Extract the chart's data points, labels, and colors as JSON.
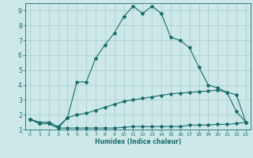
{
  "xlabel": "Humidex (Indice chaleur)",
  "bg_color": "#cce8e8",
  "grid_color": "#aacccc",
  "line_color": "#1a6b6b",
  "xlim": [
    -0.5,
    23.5
  ],
  "ylim": [
    1,
    9.5
  ],
  "yticks": [
    1,
    2,
    3,
    4,
    5,
    6,
    7,
    8,
    9
  ],
  "xtick_labels": [
    "0",
    "1",
    "2",
    "3",
    "4",
    "5",
    "6",
    "7",
    "8",
    "9",
    "10",
    "11",
    "12",
    "13",
    "14",
    "15",
    "16",
    "17",
    "18",
    "19",
    "20",
    "21",
    "22",
    "23"
  ],
  "series_top_x": [
    0,
    1,
    2,
    3,
    4,
    5,
    6,
    7,
    8,
    9,
    10,
    11,
    12,
    13,
    14,
    15,
    16,
    17,
    18,
    19,
    20,
    21,
    22,
    23
  ],
  "series_top_y": [
    1.7,
    1.4,
    1.4,
    1.1,
    1.8,
    4.2,
    4.2,
    5.8,
    6.7,
    7.5,
    8.6,
    9.3,
    8.8,
    9.3,
    8.8,
    7.2,
    7.0,
    6.5,
    5.2,
    4.0,
    3.8,
    3.5,
    2.2,
    1.5
  ],
  "series_mid_x": [
    0,
    1,
    2,
    3,
    4,
    5,
    6,
    7,
    8,
    9,
    10,
    11,
    12,
    13,
    14,
    15,
    16,
    17,
    18,
    19,
    20,
    21,
    22,
    23
  ],
  "series_mid_y": [
    1.7,
    1.5,
    1.5,
    1.2,
    1.8,
    2.0,
    2.1,
    2.3,
    2.5,
    2.7,
    2.9,
    3.0,
    3.1,
    3.2,
    3.3,
    3.4,
    3.45,
    3.5,
    3.55,
    3.6,
    3.65,
    3.5,
    3.35,
    1.5
  ],
  "series_low_x": [
    0,
    1,
    2,
    3,
    4,
    5,
    6,
    7,
    8,
    9,
    10,
    11,
    12,
    13,
    14,
    15,
    16,
    17,
    18,
    19,
    20,
    21,
    22,
    23
  ],
  "series_low_y": [
    1.7,
    1.4,
    1.4,
    1.1,
    1.1,
    1.1,
    1.1,
    1.1,
    1.1,
    1.1,
    1.15,
    1.2,
    1.2,
    1.2,
    1.2,
    1.2,
    1.2,
    1.3,
    1.3,
    1.3,
    1.35,
    1.35,
    1.4,
    1.5
  ]
}
